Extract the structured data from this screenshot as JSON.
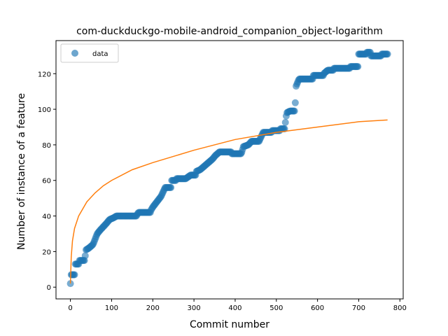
{
  "chart_data": {
    "type": "scatter",
    "title": "com-duckduckgo-mobile-android_companion_object-logarithm",
    "xlabel": "Commit number",
    "ylabel": "Number of instance of a feature",
    "xlim": [
      -35,
      808
    ],
    "ylim": [
      -6.6,
      138.6
    ],
    "xticks": [
      0,
      100,
      200,
      300,
      400,
      500,
      600,
      700,
      800
    ],
    "yticks": [
      0,
      20,
      40,
      60,
      80,
      100,
      120
    ],
    "grid": false,
    "legend": {
      "position": "top-left",
      "entries": [
        "data"
      ]
    },
    "colors": {
      "data": "#1f77b4",
      "fit": "#ff7f0e"
    },
    "series": [
      {
        "name": "data",
        "kind": "scatter",
        "steps": [
          [
            0,
            2
          ],
          [
            2,
            7
          ],
          [
            10,
            7
          ],
          [
            12,
            13
          ],
          [
            20,
            13
          ],
          [
            22,
            15
          ],
          [
            35,
            16
          ],
          [
            38,
            21
          ],
          [
            45,
            22
          ],
          [
            55,
            24
          ],
          [
            60,
            27
          ],
          [
            65,
            30
          ],
          [
            72,
            32
          ],
          [
            80,
            34
          ],
          [
            88,
            36
          ],
          [
            95,
            38
          ],
          [
            105,
            39
          ],
          [
            112,
            40
          ],
          [
            160,
            40
          ],
          [
            165,
            42
          ],
          [
            195,
            43
          ],
          [
            200,
            45
          ],
          [
            210,
            48
          ],
          [
            220,
            51
          ],
          [
            230,
            56
          ],
          [
            245,
            60
          ],
          [
            258,
            61
          ],
          [
            280,
            61
          ],
          [
            292,
            63
          ],
          [
            305,
            65
          ],
          [
            315,
            66
          ],
          [
            325,
            68
          ],
          [
            335,
            70
          ],
          [
            345,
            72
          ],
          [
            352,
            74
          ],
          [
            362,
            76
          ],
          [
            380,
            76
          ],
          [
            392,
            75
          ],
          [
            415,
            75
          ],
          [
            420,
            79
          ],
          [
            432,
            80
          ],
          [
            440,
            82
          ],
          [
            460,
            83
          ],
          [
            468,
            87
          ],
          [
            490,
            88
          ],
          [
            510,
            89
          ],
          [
            520,
            89
          ],
          [
            525,
            98
          ],
          [
            533,
            99
          ],
          [
            545,
            99
          ],
          [
            548,
            113
          ],
          [
            555,
            117
          ],
          [
            590,
            119
          ],
          [
            615,
            120
          ],
          [
            625,
            122
          ],
          [
            640,
            123
          ],
          [
            680,
            124
          ],
          [
            700,
            131
          ],
          [
            720,
            132
          ],
          [
            730,
            130
          ],
          [
            755,
            131
          ],
          [
            770,
            131
          ]
        ]
      },
      {
        "name": "fit",
        "kind": "line",
        "x": [
          0,
          2,
          5,
          10,
          20,
          40,
          60,
          80,
          100,
          150,
          200,
          300,
          400,
          500,
          600,
          700,
          770
        ],
        "y": [
          2,
          17,
          26,
          33,
          40,
          48,
          53,
          57,
          60,
          66,
          70,
          77,
          83,
          87,
          90,
          93,
          94
        ]
      }
    ]
  }
}
